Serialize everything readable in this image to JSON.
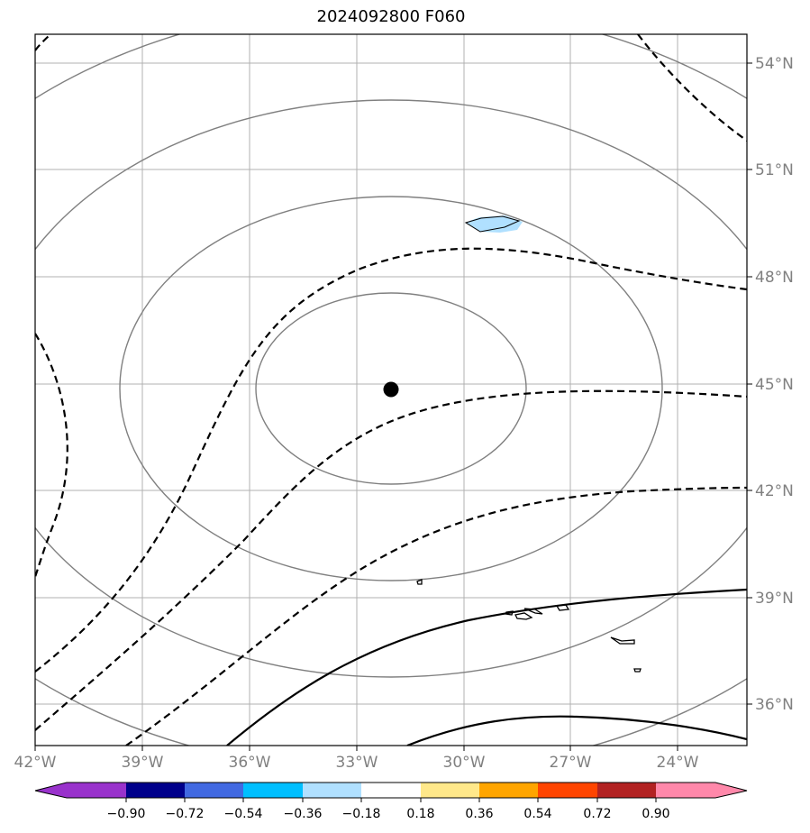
{
  "title": "2024092800 F060",
  "map": {
    "lon_range": [
      -42,
      -22.3
    ],
    "lat_range": [
      34.8,
      54.8
    ],
    "lon_ticks": [
      "42°W",
      "39°W",
      "36°W",
      "33°W",
      "30°W",
      "27°W",
      "24°W"
    ],
    "lat_ticks": [
      "36°N",
      "39°N",
      "42°N",
      "45°N",
      "48°N",
      "51°N",
      "54°N"
    ],
    "center_marker": {
      "lon": -32.0,
      "lat": 44.8
    },
    "grid": true
  },
  "colorbar": {
    "ticks": [
      "−0.90",
      "−0.72",
      "−0.54",
      "−0.36",
      "−0.18",
      "0.18",
      "0.36",
      "0.54",
      "0.72",
      "0.90"
    ],
    "colors": [
      "#9932CC",
      "#00008B",
      "#4169E1",
      "#00BFFF",
      "#B0E0FF",
      "#FFFFFF",
      "#FFE88A",
      "#FFA500",
      "#FF4500",
      "#B22222",
      "#FF88AA"
    ],
    "extend": "both"
  },
  "colors": {
    "range_rings": "#808080",
    "contours": "#000000",
    "grid": "#b0b0b0",
    "tick_text": "#808080"
  }
}
